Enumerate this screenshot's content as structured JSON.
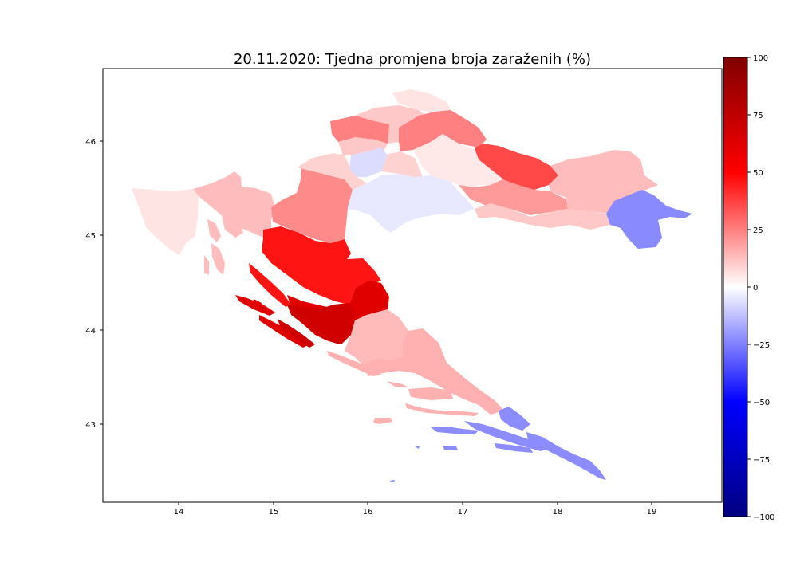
{
  "title": "20.11.2020: Tjedna promjena broja zaraženih (%)",
  "map": {
    "x_ticks": [
      "14",
      "15",
      "16",
      "17",
      "18",
      "19"
    ],
    "y_ticks": [
      "46",
      "45",
      "44",
      "43"
    ],
    "xlim": [
      13.2,
      19.75
    ],
    "ylim": [
      42.15,
      46.75
    ]
  },
  "colorbar": {
    "colormap": "seismic",
    "range": [
      -100,
      100
    ],
    "tick_labels": [
      "100",
      "75",
      "50",
      "25",
      "0",
      "−25",
      "−50",
      "−75",
      "−100"
    ],
    "colors": [
      "#800000",
      "#ff0000",
      "#ffffff",
      "#0000ff",
      "#000080"
    ]
  },
  "regions": [
    {
      "value": 6,
      "color": "#ffe4e4"
    },
    {
      "value": 22,
      "color": "#ffbcbc"
    },
    {
      "value": 40,
      "color": "#ff8a8a"
    },
    {
      "value": 12,
      "color": "#ffd2d2"
    },
    {
      "value": 15,
      "color": "#ffc8c8"
    },
    {
      "value": -8,
      "color": "#dcdcff"
    },
    {
      "value": 38,
      "color": "#ff8080"
    },
    {
      "value": -5,
      "color": "#e8e8ff"
    },
    {
      "value": 5,
      "color": "#ffe8e8"
    },
    {
      "value": 52,
      "color": "#ff4848"
    },
    {
      "value": 30,
      "color": "#ff9a9a"
    },
    {
      "value": -38,
      "color": "#8a8aff"
    },
    {
      "value": 62,
      "color": "#ff1414"
    },
    {
      "value": 80,
      "color": "#e00000"
    },
    {
      "value": 70,
      "color": "#d00000"
    },
    {
      "value": 22,
      "color": "#ffb0b0"
    },
    {
      "value": 18,
      "color": "#ffbaba"
    },
    {
      "value": -35,
      "color": "#8c8cff"
    },
    {
      "value": 18,
      "color": "#ffb0b0"
    }
  ]
}
